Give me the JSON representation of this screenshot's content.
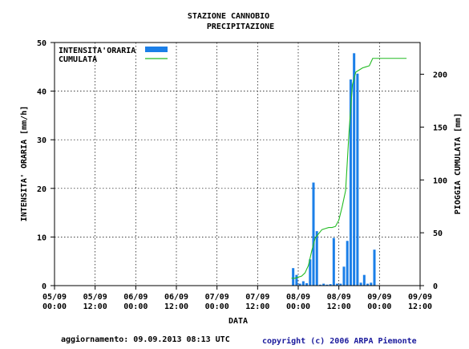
{
  "chart_data": {
    "type": "bar",
    "title": "STAZIONE CANNOBIO",
    "subtitle": "PRECIPITAZIONE",
    "xlabel": "DATA",
    "ylabel": "INTENSITA' ORARIA [mm/h]",
    "y2label": "PIOGGIA CUMULATA [mm]",
    "ylim": [
      0,
      50
    ],
    "y2lim": [
      0,
      230
    ],
    "y_ticks": [
      "0",
      "10",
      "20",
      "30",
      "40",
      "50"
    ],
    "y2_ticks": [
      "0",
      "50",
      "100",
      "150",
      "200"
    ],
    "x_ticks": [
      {
        "line1": "05/09",
        "line2": "00:00"
      },
      {
        "line1": "05/09",
        "line2": "12:00"
      },
      {
        "line1": "06/09",
        "line2": "00:00"
      },
      {
        "line1": "06/09",
        "line2": "12:00"
      },
      {
        "line1": "07/09",
        "line2": "00:00"
      },
      {
        "line1": "07/09",
        "line2": "12:00"
      },
      {
        "line1": "08/09",
        "line2": "00:00"
      },
      {
        "line1": "08/09",
        "line2": "12:00"
      },
      {
        "line1": "09/09",
        "line2": "00:00"
      },
      {
        "line1": "09/09",
        "line2": "12:00"
      }
    ],
    "x_unit": "hours since 05/09 00:00",
    "grid": true,
    "legend_position": "top-left",
    "series": [
      {
        "name": "INTENSITA'ORARIA",
        "kind": "bar",
        "axis": "left",
        "color": "#1b7fe8",
        "points": [
          {
            "x": 70,
            "y": 3.6
          },
          {
            "x": 71,
            "y": 2.2
          },
          {
            "x": 72,
            "y": 0.4
          },
          {
            "x": 73,
            "y": 0.9
          },
          {
            "x": 74,
            "y": 0.5
          },
          {
            "x": 75,
            "y": 5.4
          },
          {
            "x": 76,
            "y": 21.2
          },
          {
            "x": 77,
            "y": 11.2
          },
          {
            "x": 78,
            "y": 0.2
          },
          {
            "x": 79,
            "y": 0.4
          },
          {
            "x": 80,
            "y": 0.2
          },
          {
            "x": 81,
            "y": 0.3
          },
          {
            "x": 82,
            "y": 9.8
          },
          {
            "x": 83,
            "y": 0.4
          },
          {
            "x": 84,
            "y": 0.4
          },
          {
            "x": 85,
            "y": 3.9
          },
          {
            "x": 86,
            "y": 9.2
          },
          {
            "x": 87,
            "y": 42.4
          },
          {
            "x": 88,
            "y": 47.8
          },
          {
            "x": 89,
            "y": 43.6
          },
          {
            "x": 90,
            "y": 0.6
          },
          {
            "x": 91,
            "y": 2.2
          },
          {
            "x": 92,
            "y": 0.4
          },
          {
            "x": 93,
            "y": 0.6
          },
          {
            "x": 94,
            "y": 7.4
          }
        ]
      },
      {
        "name": "CUMULATA",
        "kind": "line",
        "axis": "right",
        "color": "#22bb22",
        "points": [
          {
            "x": 70,
            "y": 7
          },
          {
            "x": 71,
            "y": 7
          },
          {
            "x": 72,
            "y": 8
          },
          {
            "x": 73,
            "y": 9
          },
          {
            "x": 74,
            "y": 12
          },
          {
            "x": 75,
            "y": 19
          },
          {
            "x": 76,
            "y": 33
          },
          {
            "x": 77,
            "y": 45
          },
          {
            "x": 78,
            "y": 49
          },
          {
            "x": 79,
            "y": 53
          },
          {
            "x": 80,
            "y": 54
          },
          {
            "x": 81,
            "y": 55
          },
          {
            "x": 82,
            "y": 55
          },
          {
            "x": 83,
            "y": 56
          },
          {
            "x": 84,
            "y": 62
          },
          {
            "x": 85,
            "y": 75
          },
          {
            "x": 86,
            "y": 90
          },
          {
            "x": 87,
            "y": 145
          },
          {
            "x": 88,
            "y": 190
          },
          {
            "x": 89,
            "y": 202
          },
          {
            "x": 90,
            "y": 204
          },
          {
            "x": 91,
            "y": 206
          },
          {
            "x": 92,
            "y": 207
          },
          {
            "x": 93,
            "y": 208
          },
          {
            "x": 94,
            "y": 215
          },
          {
            "x": 96,
            "y": 215
          },
          {
            "x": 104,
            "y": 215
          }
        ]
      }
    ]
  },
  "footer": {
    "update": "aggiornamento: 09.09.2013 08:13 UTC",
    "copyright": "copyright (c) 2006 ARPA Piemonte"
  }
}
